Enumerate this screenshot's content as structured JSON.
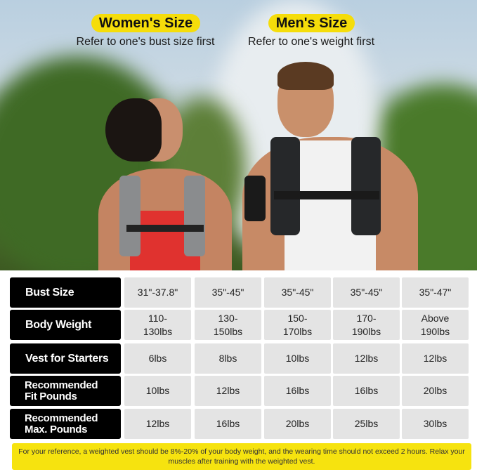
{
  "header": {
    "women": {
      "title": "Women's Size",
      "subtitle": "Refer to one's bust size first"
    },
    "men": {
      "title": "Men's Size",
      "subtitle": "Refer to one's weight first"
    }
  },
  "table": {
    "rows": [
      {
        "label": "Bust Size",
        "values": [
          "31\"-37.8\"",
          "35\"-45\"",
          "35\"-45\"",
          "35\"-45\"",
          "35\"-47\""
        ]
      },
      {
        "label": "Body Weight",
        "values": [
          "110-\n130lbs",
          "130-\n150lbs",
          "150-\n170lbs",
          "170-\n190lbs",
          "Above\n190lbs"
        ]
      },
      {
        "label": "Vest for Starters",
        "values": [
          "6lbs",
          "8lbs",
          "10lbs",
          "12lbs",
          "12lbs"
        ]
      },
      {
        "label": "Recommended Fit Pounds",
        "values": [
          "10lbs",
          "12lbs",
          "16lbs",
          "16lbs",
          "20lbs"
        ]
      },
      {
        "label": "Recommended Max. Pounds",
        "values": [
          "12lbs",
          "16lbs",
          "20lbs",
          "25lbs",
          "30lbs"
        ]
      }
    ]
  },
  "note": "For your reference, a weighted vest should be 8%-20% of your body weight, and the wearing time should not exceed 2 hours. Relax your muscles after training with the weighted vest.",
  "colors": {
    "accent": "#f5dd0a",
    "label_bg": "#000000",
    "cell_bg": "#e4e4e4"
  }
}
